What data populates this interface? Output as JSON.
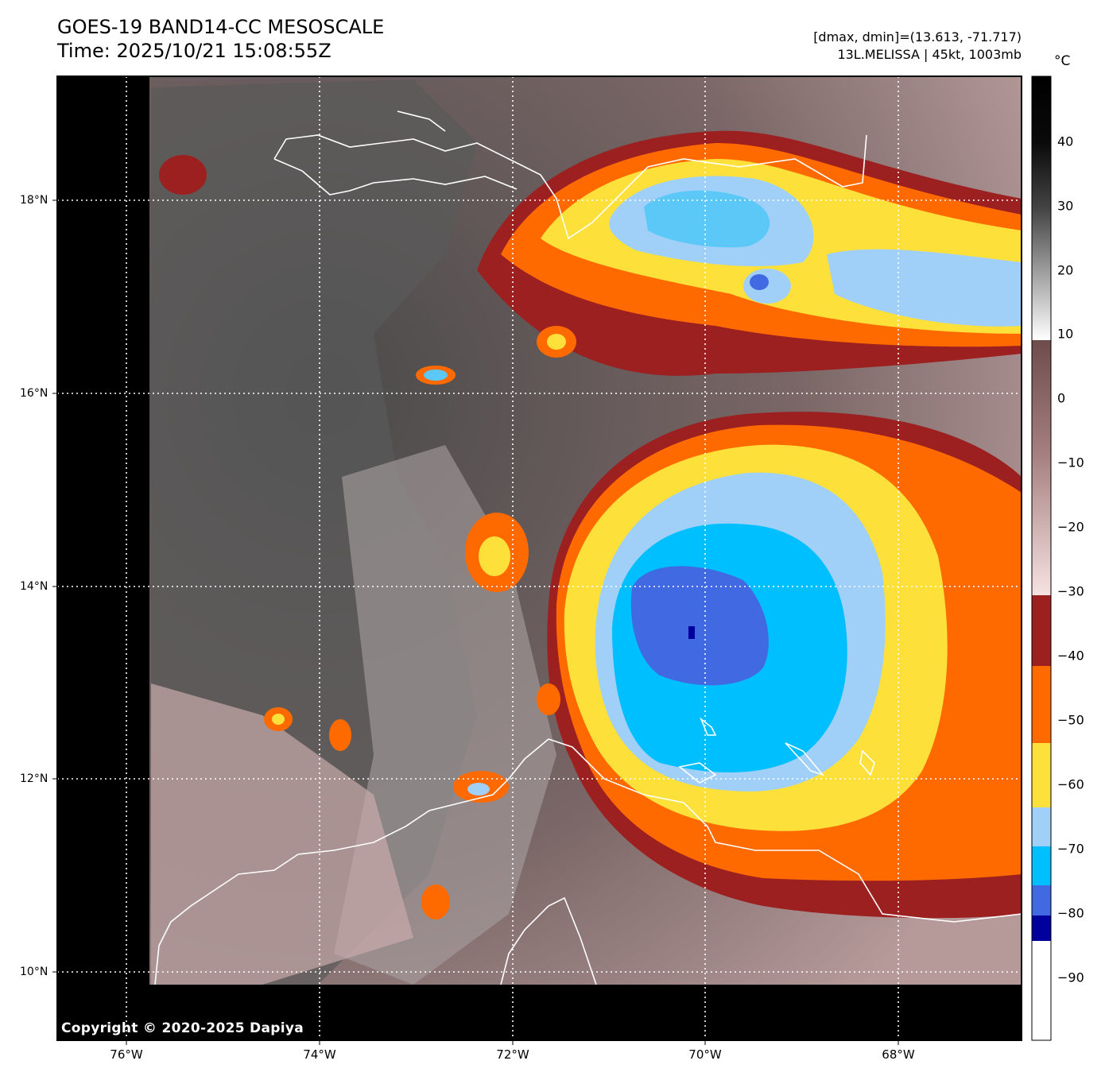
{
  "header": {
    "title_line1": "GOES-19 BAND14-CC MESOSCALE",
    "title_line2": "Time: 2025/10/21 15:08:55Z",
    "info_line1": "[dmax, dmin]=(13.613, -71.717)",
    "info_line2": "13L.MELISSA | 45kt, 1003mb"
  },
  "map": {
    "lat_labels": [
      "18°N",
      "16°N",
      "14°N",
      "12°N",
      "10°N"
    ],
    "lon_labels": [
      "76°W",
      "74°W",
      "72°W",
      "70°W",
      "68°W"
    ],
    "copyright": "Copyright © 2020-2025 Dapiya"
  },
  "colorbar": {
    "unit": "°C",
    "ticks": [
      "40",
      "30",
      "20",
      "10",
      "0",
      "−10",
      "−20",
      "−30",
      "−40",
      "−50",
      "−60",
      "−70",
      "−80",
      "−90"
    ],
    "range": [
      -100,
      50
    ],
    "segments": [
      {
        "from": 50,
        "to": 10,
        "color": "grayscale"
      },
      {
        "from": 9,
        "to": -30,
        "color": "brown-pink"
      },
      {
        "from": -30,
        "to": -41,
        "color": "#9c2020"
      },
      {
        "from": -41,
        "to": -53,
        "color": "#ff6a00"
      },
      {
        "from": -53,
        "to": -63,
        "color": "#fee03a"
      },
      {
        "from": -63,
        "to": -69,
        "color": "#a0d0f8"
      },
      {
        "from": -69,
        "to": -76,
        "color": "#00bfff"
      },
      {
        "from": -76,
        "to": -80,
        "color": "#4169e1"
      },
      {
        "from": -80,
        "to": -84,
        "color": "#00009c"
      },
      {
        "from": -84,
        "to": -100,
        "color": "#ffffff"
      }
    ]
  }
}
